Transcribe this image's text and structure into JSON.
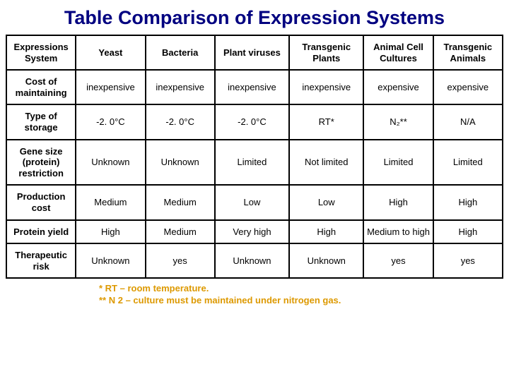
{
  "title": "Table Comparison of Expression Systems",
  "table": {
    "columns": [
      "Expressions System",
      "Yeast",
      "Bacteria",
      "Plant viruses",
      "Transgenic Plants",
      "Animal Cell Cultures",
      "Transgenic Animals"
    ],
    "rows": [
      {
        "header": "Cost of maintaining",
        "cells": [
          "inexpensive",
          "inexpensive",
          "inexpensive",
          "inexpensive",
          "expensive",
          "expensive"
        ]
      },
      {
        "header": "Type of storage",
        "cells": [
          "-2. 0°C",
          "-2. 0°C",
          "-2. 0°C",
          "RT*",
          "N₂**",
          "N/A"
        ]
      },
      {
        "header": "Gene size (protein) restriction",
        "cells": [
          "Unknown",
          "Unknown",
          "Limited",
          "Not limited",
          "Limited",
          "Limited"
        ]
      },
      {
        "header": "Production cost",
        "cells": [
          "Medium",
          "Medium",
          "Low",
          "Low",
          "High",
          "High"
        ]
      },
      {
        "header": "Protein yield",
        "cells": [
          "High",
          "Medium",
          "Very high",
          "High",
          "Medium to high",
          "High"
        ]
      },
      {
        "header": "Therapeutic risk",
        "cells": [
          "Unknown",
          "yes",
          "Unknown",
          "Unknown",
          "yes",
          "yes"
        ]
      }
    ],
    "col_widths": [
      "14%",
      "14%",
      "14%",
      "15%",
      "15%",
      "14%",
      "14%"
    ],
    "border_color": "#000000",
    "header_font_weight": "bold"
  },
  "footnotes": {
    "line1": "* RT – room temperature.",
    "line2": "** N 2 – culture must be maintained under nitrogen gas."
  },
  "colors": {
    "title_color": "#000080",
    "footnote_color": "#dd9900",
    "background": "#ffffff"
  }
}
